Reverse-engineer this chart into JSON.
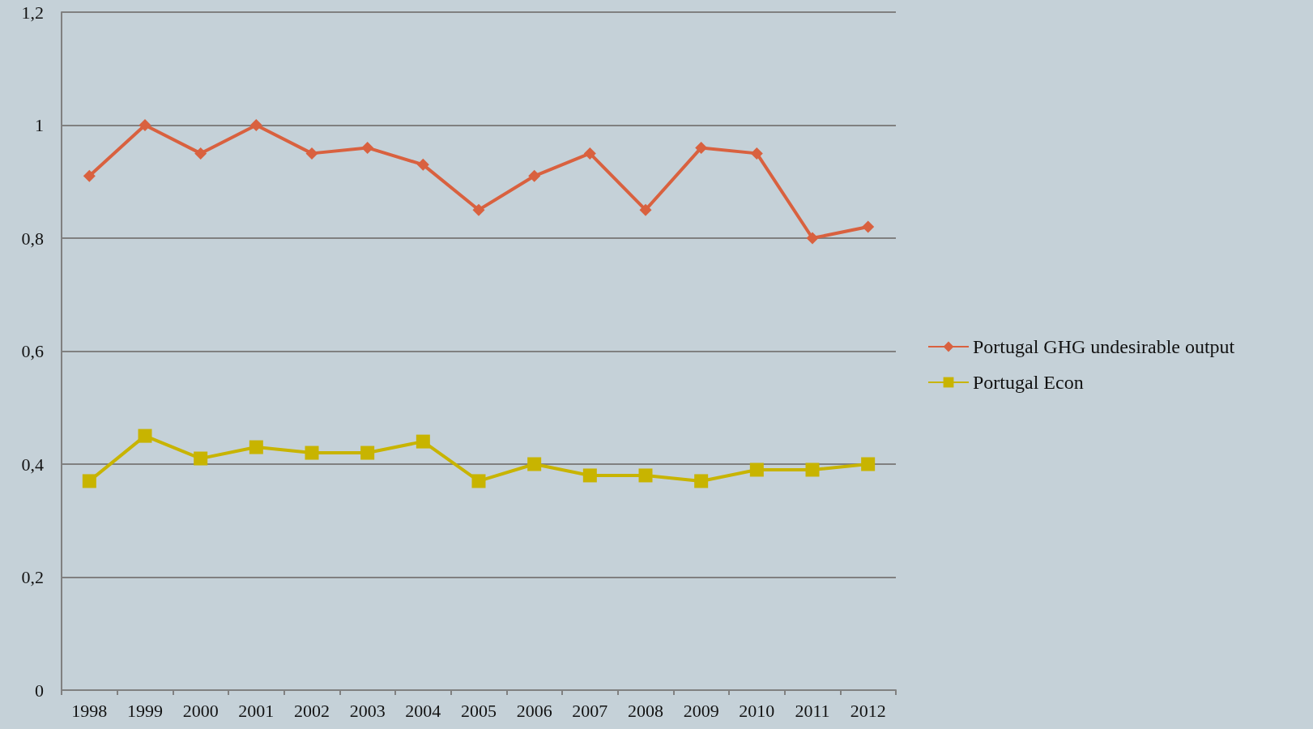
{
  "chart_data": {
    "type": "line",
    "categories": [
      "1998",
      "1999",
      "2000",
      "2001",
      "2002",
      "2003",
      "2004",
      "2005",
      "2006",
      "2007",
      "2008",
      "2009",
      "2010",
      "2011",
      "2012"
    ],
    "series": [
      {
        "name": "Portugal GHG undesirable output",
        "color": "#d9613f",
        "marker": "diamond",
        "values": [
          0.91,
          1.0,
          0.95,
          1.0,
          0.95,
          0.96,
          0.93,
          0.85,
          0.91,
          0.95,
          0.85,
          0.96,
          0.95,
          0.8,
          0.82
        ]
      },
      {
        "name": "Portugal Econ",
        "color": "#c8b400",
        "marker": "square",
        "values": [
          0.37,
          0.45,
          0.41,
          0.43,
          0.42,
          0.42,
          0.44,
          0.37,
          0.4,
          0.38,
          0.38,
          0.37,
          0.39,
          0.39,
          0.4
        ]
      }
    ],
    "ylim": [
      0,
      1.2
    ],
    "yticks": [
      0,
      {
        "value": 0.2,
        "label": "0,2"
      },
      {
        "value": 0.4,
        "label": "0,4"
      },
      {
        "value": 0.6,
        "label": "0,6"
      },
      {
        "value": 0.8,
        "label": "0,8"
      },
      1,
      {
        "value": 1.2,
        "label": "1,2"
      }
    ],
    "grid": "y",
    "legend": "right",
    "line_style": "solid"
  }
}
